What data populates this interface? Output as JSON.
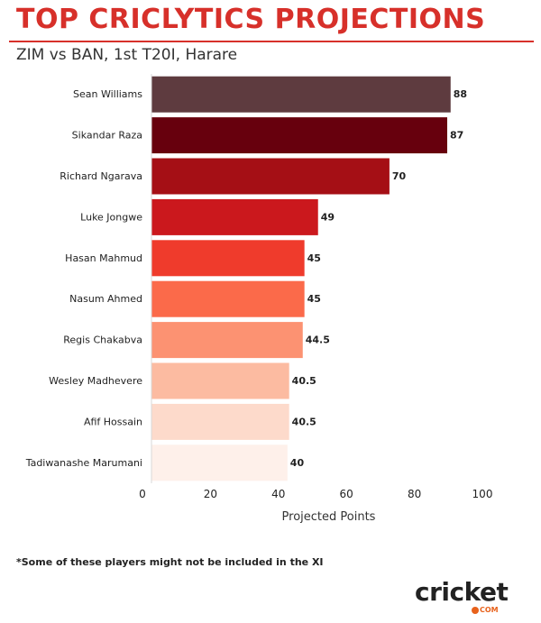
{
  "header": {
    "title": "TOP CRICLYTICS PROJECTIONS",
    "subtitle": "ZIM vs BAN, 1st T20I, Harare",
    "accent_color": "#d7302a"
  },
  "chart_data": {
    "type": "bar",
    "orientation": "horizontal",
    "categories": [
      "Sean Williams",
      "Sikandar Raza",
      "Richard Ngarava",
      "Luke Jongwe",
      "Hasan Mahmud",
      "Nasum Ahmed",
      "Regis Chakabva",
      "Wesley Madhevere",
      "Afif Hossain",
      "Tadiwanashe Marumani"
    ],
    "values": [
      88,
      87,
      70,
      49,
      45,
      45,
      44.5,
      40.5,
      40.5,
      40
    ],
    "value_labels": [
      "88",
      "87",
      "70",
      "49",
      "45",
      "45",
      "44.5",
      "40.5",
      "40.5",
      "40"
    ],
    "bar_colors": [
      "#5e3b3f",
      "#67000d",
      "#a50f15",
      "#cb181d",
      "#ef3b2c",
      "#fb6a4a",
      "#fc9272",
      "#fcbba1",
      "#fddacb",
      "#fef0ea"
    ],
    "xlabel": "Projected Points",
    "ylabel": "",
    "xlim": [
      0,
      100
    ],
    "xticks": [
      0,
      20,
      40,
      60,
      80,
      100
    ],
    "xtick_labels": [
      "0",
      "20",
      "40",
      "60",
      "80",
      "100"
    ],
    "grid": false,
    "data_labels": true
  },
  "footnote": "*Some of these players might not be included in the XI",
  "logo": {
    "main": "cricket",
    "sub": "COM",
    "accent_color": "#e8621c"
  }
}
